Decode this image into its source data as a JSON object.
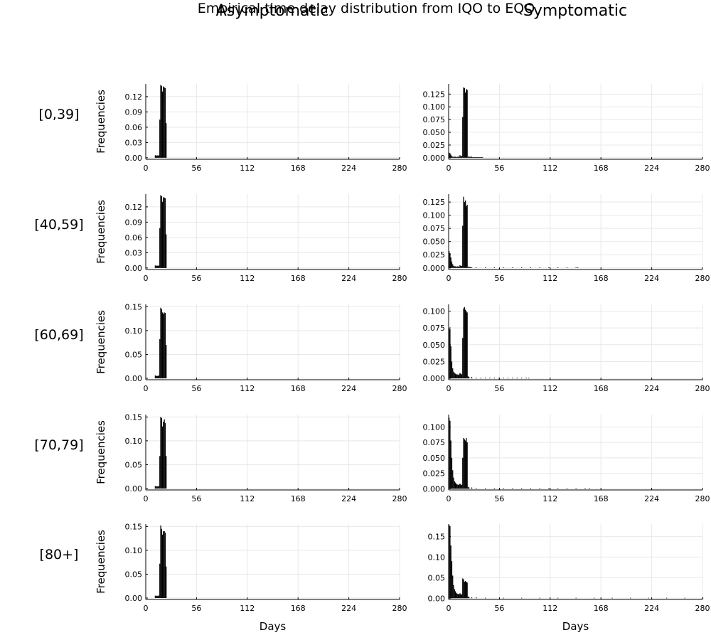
{
  "title": "Empirical time delay distribution from IQO to EQO",
  "column_titles": [
    "Asymptomatic",
    "Symptomatic"
  ],
  "row_labels": [
    "[0,39]",
    "[40,59]",
    "[60,69]",
    "[70,79]",
    "[80+]"
  ],
  "ylabel": "Frequencies",
  "xlabel": "Days",
  "colors": {
    "bars": "#000000",
    "grid": "#e8e8e8",
    "axis": "#000000"
  },
  "chart_data": {
    "type": "bar",
    "layout": "5 rows x 2 columns of histograms",
    "x_ticks": [
      0,
      56,
      112,
      168,
      224,
      280
    ],
    "xlim": [
      0,
      280
    ],
    "grid": true,
    "panels": [
      {
        "column": "Asymptomatic",
        "row": "[0,39]",
        "ylim": [
          -0.003,
          0.145
        ],
        "y_ticks": [
          0.0,
          0.03,
          0.06,
          0.09,
          0.12
        ],
        "y_tick_labels": [
          "0.00",
          "0.03",
          "0.06",
          "0.09",
          "0.12"
        ],
        "x": [
          10,
          11,
          12,
          13,
          14,
          15,
          16,
          17,
          18,
          19,
          20,
          21,
          22
        ],
        "values": [
          0.005,
          0.004,
          0.005,
          0.004,
          0.005,
          0.075,
          0.143,
          0.141,
          0.13,
          0.14,
          0.138,
          0.137,
          0.068
        ]
      },
      {
        "column": "Symptomatic",
        "row": "[0,39]",
        "ylim": [
          -0.003,
          0.145
        ],
        "y_ticks": [
          0.0,
          0.025,
          0.05,
          0.075,
          0.1,
          0.125
        ],
        "y_tick_labels": [
          "0.000",
          "0.025",
          "0.050",
          "0.075",
          "0.100",
          "0.125"
        ],
        "x": [
          0,
          1,
          2,
          3,
          4,
          5,
          6,
          7,
          8,
          9,
          10,
          11,
          12,
          13,
          14,
          15,
          16,
          17,
          18,
          19,
          20,
          21,
          22,
          23,
          24,
          25,
          26,
          27,
          28,
          29,
          30,
          31,
          32,
          33,
          34,
          35,
          36,
          37
        ],
        "values": [
          0.01,
          0.009,
          0.006,
          0.003,
          0.002,
          0.002,
          0.002,
          0.002,
          0.001,
          0.002,
          0.002,
          0.002,
          0.005,
          0.003,
          0.004,
          0.08,
          0.138,
          0.137,
          0.128,
          0.135,
          0.133,
          0.002,
          0.002,
          0.002,
          0.002,
          0.002,
          0.001,
          0.001,
          0.001,
          0.001,
          0.001,
          0.001,
          0.001,
          0.001,
          0.001,
          0.001,
          0.001,
          0.001
        ]
      },
      {
        "column": "Asymptomatic",
        "row": "[40,59]",
        "ylim": [
          -0.003,
          0.145
        ],
        "y_ticks": [
          0.0,
          0.03,
          0.06,
          0.09,
          0.12
        ],
        "y_tick_labels": [
          "0.00",
          "0.03",
          "0.06",
          "0.09",
          "0.12"
        ],
        "x": [
          10,
          11,
          12,
          13,
          14,
          15,
          16,
          17,
          18,
          19,
          20,
          21,
          22
        ],
        "values": [
          0.005,
          0.004,
          0.005,
          0.004,
          0.005,
          0.078,
          0.143,
          0.141,
          0.13,
          0.139,
          0.138,
          0.137,
          0.066
        ]
      },
      {
        "column": "Symptomatic",
        "row": "[40,59]",
        "ylim": [
          -0.003,
          0.14
        ],
        "y_ticks": [
          0.0,
          0.025,
          0.05,
          0.075,
          0.1,
          0.125
        ],
        "y_tick_labels": [
          "0.000",
          "0.025",
          "0.050",
          "0.075",
          "0.100",
          "0.125"
        ],
        "x": [
          0,
          1,
          2,
          3,
          4,
          5,
          6,
          7,
          8,
          9,
          10,
          11,
          12,
          13,
          14,
          15,
          16,
          17,
          18,
          19,
          20,
          21,
          22,
          23,
          24,
          25,
          30,
          40,
          50,
          60,
          70,
          80,
          90,
          100,
          110,
          120,
          130,
          140,
          142
        ],
        "values": [
          0.032,
          0.028,
          0.02,
          0.012,
          0.007,
          0.004,
          0.003,
          0.003,
          0.002,
          0.003,
          0.003,
          0.002,
          0.005,
          0.004,
          0.004,
          0.08,
          0.135,
          0.125,
          0.128,
          0.117,
          0.12,
          0.002,
          0.002,
          0.002,
          0.001,
          0.001,
          0.001,
          0.001,
          0.001,
          0.001,
          0.001,
          0.001,
          0.001,
          0.001,
          0.001,
          0.001,
          0.001,
          0.001,
          0.001
        ]
      },
      {
        "column": "Asymptomatic",
        "row": "[60,69]",
        "ylim": [
          -0.003,
          0.155
        ],
        "y_ticks": [
          0.0,
          0.05,
          0.1,
          0.15
        ],
        "y_tick_labels": [
          "0.00",
          "0.05",
          "0.10",
          "0.15"
        ],
        "x": [
          10,
          11,
          12,
          13,
          14,
          15,
          16,
          17,
          18,
          19,
          20,
          21,
          22
        ],
        "values": [
          0.006,
          0.005,
          0.005,
          0.005,
          0.006,
          0.082,
          0.148,
          0.145,
          0.138,
          0.135,
          0.138,
          0.137,
          0.07
        ]
      },
      {
        "column": "Symptomatic",
        "row": "[60,69]",
        "ylim": [
          -0.002,
          0.11
        ],
        "y_ticks": [
          0.0,
          0.025,
          0.05,
          0.075,
          0.1
        ],
        "y_tick_labels": [
          "0.000",
          "0.025",
          "0.050",
          "0.075",
          "0.100"
        ],
        "x": [
          0,
          1,
          2,
          3,
          4,
          5,
          6,
          7,
          8,
          9,
          10,
          11,
          12,
          13,
          14,
          15,
          16,
          17,
          18,
          19,
          20,
          21,
          22,
          25,
          30,
          35,
          40,
          45,
          50,
          55,
          60,
          65,
          70,
          75,
          80,
          85,
          88
        ],
        "values": [
          0.075,
          0.073,
          0.048,
          0.025,
          0.015,
          0.01,
          0.008,
          0.007,
          0.006,
          0.006,
          0.005,
          0.006,
          0.008,
          0.007,
          0.006,
          0.06,
          0.104,
          0.106,
          0.102,
          0.1,
          0.098,
          0.003,
          0.002,
          0.002,
          0.001,
          0.001,
          0.001,
          0.001,
          0.001,
          0.001,
          0.001,
          0.001,
          0.001,
          0.001,
          0.001,
          0.001,
          0.001
        ]
      },
      {
        "column": "Asymptomatic",
        "row": "[70,79]",
        "ylim": [
          -0.003,
          0.155
        ],
        "y_ticks": [
          0.0,
          0.05,
          0.1,
          0.15
        ],
        "y_tick_labels": [
          "0.00",
          "0.05",
          "0.10",
          "0.15"
        ],
        "x": [
          10,
          11,
          12,
          13,
          14,
          15,
          16,
          17,
          18,
          19,
          20,
          21,
          22
        ],
        "values": [
          0.005,
          0.005,
          0.004,
          0.005,
          0.005,
          0.068,
          0.15,
          0.148,
          0.13,
          0.14,
          0.145,
          0.137,
          0.068
        ]
      },
      {
        "column": "Symptomatic",
        "row": "[70,79]",
        "ylim": [
          -0.002,
          0.12
        ],
        "y_ticks": [
          0.0,
          0.025,
          0.05,
          0.075,
          0.1
        ],
        "y_tick_labels": [
          "0.000",
          "0.025",
          "0.050",
          "0.075",
          "0.100"
        ],
        "x": [
          0,
          1,
          2,
          3,
          4,
          5,
          6,
          7,
          8,
          9,
          10,
          11,
          12,
          13,
          14,
          15,
          16,
          17,
          18,
          19,
          20,
          21,
          22,
          25,
          30,
          40,
          50,
          60,
          70,
          80,
          90,
          100,
          110,
          120,
          130,
          140,
          150,
          155
        ],
        "values": [
          0.115,
          0.11,
          0.078,
          0.05,
          0.03,
          0.018,
          0.012,
          0.01,
          0.008,
          0.007,
          0.006,
          0.007,
          0.008,
          0.007,
          0.006,
          0.05,
          0.082,
          0.08,
          0.078,
          0.082,
          0.075,
          0.003,
          0.002,
          0.002,
          0.001,
          0.001,
          0.001,
          0.001,
          0.001,
          0.001,
          0.001,
          0.001,
          0.001,
          0.001,
          0.001,
          0.001,
          0.001,
          0.001
        ]
      },
      {
        "column": "Asymptomatic",
        "row": "[80+]",
        "ylim": [
          -0.003,
          0.155
        ],
        "y_ticks": [
          0.0,
          0.05,
          0.1,
          0.15
        ],
        "y_tick_labels": [
          "0.00",
          "0.05",
          "0.10",
          "0.15"
        ],
        "x": [
          10,
          11,
          12,
          13,
          14,
          15,
          16,
          17,
          18,
          19,
          20,
          21,
          22
        ],
        "values": [
          0.005,
          0.005,
          0.004,
          0.005,
          0.005,
          0.072,
          0.152,
          0.145,
          0.133,
          0.14,
          0.14,
          0.137,
          0.066
        ]
      },
      {
        "column": "Symptomatic",
        "row": "[80+]",
        "ylim": [
          -0.003,
          0.18
        ],
        "y_ticks": [
          0.0,
          0.05,
          0.1,
          0.15
        ],
        "y_tick_labels": [
          "0.00",
          "0.05",
          "0.10",
          "0.15"
        ],
        "x": [
          0,
          1,
          2,
          3,
          4,
          5,
          6,
          7,
          8,
          9,
          10,
          11,
          12,
          13,
          14,
          15,
          16,
          17,
          18,
          19,
          20,
          21,
          22,
          25,
          30,
          40,
          60,
          80,
          100,
          120,
          140,
          160,
          180,
          200,
          220,
          240,
          260,
          280
        ],
        "values": [
          0.178,
          0.175,
          0.128,
          0.09,
          0.055,
          0.032,
          0.022,
          0.017,
          0.013,
          0.011,
          0.01,
          0.01,
          0.012,
          0.01,
          0.009,
          0.048,
          0.046,
          0.04,
          0.042,
          0.04,
          0.038,
          0.004,
          0.003,
          0.002,
          0.002,
          0.001,
          0.001,
          0.001,
          0.001,
          0.001,
          0.001,
          0.001,
          0.001,
          0.001,
          0.001,
          0.001,
          0.001,
          0.001
        ]
      }
    ]
  }
}
